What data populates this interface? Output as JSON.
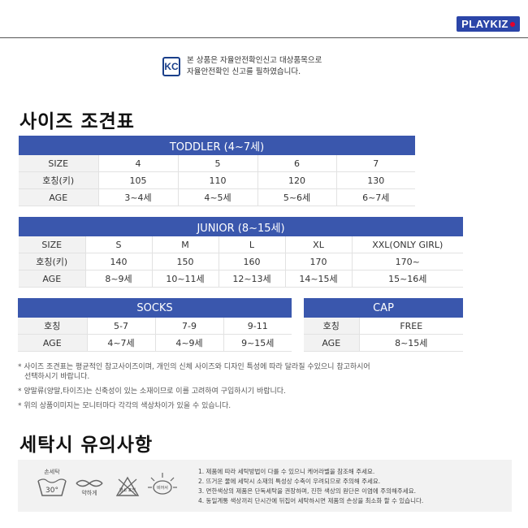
{
  "brand": {
    "logo": "PLAYKIZ"
  },
  "kc": {
    "mark": "KC",
    "line1": "본 상품은 자율안전확인신고 대상품목으로",
    "line2": "자율안전확인 신고를 필하였습니다."
  },
  "size_title": "사이즈 조견표",
  "toddler": {
    "header": "TODDLER (4~7세)",
    "rows": [
      {
        "label": "SIZE",
        "cells": [
          "4",
          "5",
          "6",
          "7"
        ]
      },
      {
        "label": "호칭(키)",
        "cells": [
          "105",
          "110",
          "120",
          "130"
        ]
      },
      {
        "label": "AGE",
        "cells": [
          "3~4세",
          "4~5세",
          "5~6세",
          "6~7세"
        ]
      }
    ]
  },
  "junior": {
    "header": "JUNIOR (8~15세)",
    "rows": [
      {
        "label": "SIZE",
        "cells": [
          "S",
          "M",
          "L",
          "XL",
          "XXL(ONLY GIRL)"
        ]
      },
      {
        "label": "호칭(키)",
        "cells": [
          "140",
          "150",
          "160",
          "170",
          "170~"
        ]
      },
      {
        "label": "AGE",
        "cells": [
          "8~9세",
          "10~11세",
          "12~13세",
          "14~15세",
          "15~16세"
        ]
      }
    ]
  },
  "socks": {
    "header": "SOCKS",
    "rows": [
      {
        "label": "호칭",
        "cells": [
          "5-7",
          "7-9",
          "9-11"
        ]
      },
      {
        "label": "AGE",
        "cells": [
          "4~7세",
          "4~9세",
          "9~15세"
        ]
      }
    ]
  },
  "cap": {
    "header": "CAP",
    "rows": [
      {
        "label": "호칭",
        "cells": [
          "FREE"
        ]
      },
      {
        "label": "AGE",
        "cells": [
          "8~15세"
        ]
      }
    ]
  },
  "notes": [
    "* 사이즈 조견표는 평균적인 참고사이즈이며, 개인의 신체 사이즈와 디자인 특성에 따라 달라질 수있으니 참고하시어",
    "   선택하시기 바랍니다.",
    "* 양말류(양말,타이즈)는 신축성이 있는 소재이므로 이를 고려하여 구입하시기 바랍니다.",
    "* 위의 상품이미지는 모니터마다 각각의 색상차이가 있을 수 있습니다."
  ],
  "care_title": "세탁시 유의사항",
  "care_icons": {
    "wash_label": "손세탁",
    "wash_temp": "30°",
    "wring_label": "약하게",
    "bleach_label": "염소\n표백",
    "dry_label": "비어서"
  },
  "care_list": [
    "1. 제품에 따라 세탁방법이 다를 수 있으니 케어라벨을 참조해 주세요.",
    "2. 뜨거운 물에 세탁시 소재의 특성상 수축이 우려되므로 주의해 주세요.",
    "3. 면한색상의 제품은 단독세탁을 권장하며, 진한 색상의 원단은 이염에 주의해주세요.",
    "4. 동일계통 색상끼리 단시간에 뒤집어 세탁하시면 제품의 손상을 최소화 할 수 있습니다."
  ]
}
